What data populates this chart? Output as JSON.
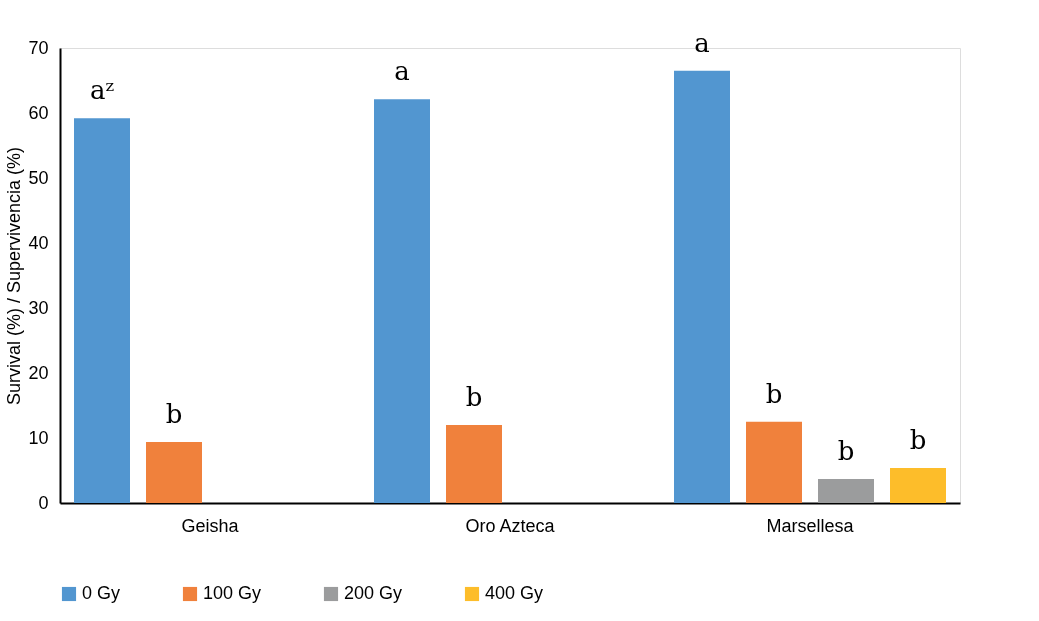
{
  "chart_data": {
    "type": "bar",
    "ylabel": "Survival (%) / Supervivencia (%)",
    "categories": [
      "Geisha",
      "Oro Azteca",
      "Marsellesa"
    ],
    "series": [
      {
        "name": "0 Gy",
        "color": "#5296d0",
        "values": [
          59.2,
          62.1,
          66.5
        ]
      },
      {
        "name": "100 Gy",
        "color": "#f0813c",
        "values": [
          9.4,
          12.0,
          12.5
        ]
      },
      {
        "name": "200 Gy",
        "color": "#9b9c9d",
        "values": [
          null,
          null,
          3.7
        ]
      },
      {
        "name": "400 Gy",
        "color": "#fdbd2a",
        "values": [
          null,
          null,
          5.4
        ]
      }
    ],
    "ylim": [
      0,
      70
    ],
    "yticks": [
      0,
      10,
      20,
      30,
      40,
      50,
      60,
      70
    ],
    "grid": false,
    "legend": "bottom",
    "annotations": [
      "aᶻ",
      "b",
      "a",
      "b",
      "a",
      "b",
      "b",
      "b"
    ]
  }
}
